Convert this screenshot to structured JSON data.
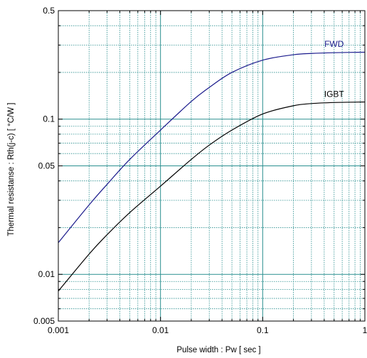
{
  "chart_data": {
    "type": "line",
    "xlabel": "Pulse width  :  Pw  [ sec ]",
    "ylabel": "Thermal resistanse  :  Rth(j-c)  [ °C/W ]",
    "x_scale": "log",
    "y_scale": "log",
    "xlim": [
      0.001,
      1
    ],
    "ylim": [
      0.005,
      0.5
    ],
    "grid": true,
    "x_ticks": [
      {
        "value": 0.001,
        "label": "0.001"
      },
      {
        "value": 0.01,
        "label": "0.01"
      },
      {
        "value": 0.1,
        "label": "0.1"
      },
      {
        "value": 1,
        "label": "1"
      }
    ],
    "y_ticks": [
      {
        "value": 0.005,
        "label": "0.005"
      },
      {
        "value": 0.01,
        "label": "0.01"
      },
      {
        "value": 0.05,
        "label": "0.05"
      },
      {
        "value": 0.1,
        "label": "0.1"
      },
      {
        "value": 0.5,
        "label": "0.5"
      }
    ],
    "series": [
      {
        "name": "FWD",
        "color": "#1a1a8c",
        "x": [
          0.001,
          0.002,
          0.003,
          0.005,
          0.01,
          0.02,
          0.03,
          0.05,
          0.1,
          0.2,
          0.3,
          0.5,
          1
        ],
        "y": [
          0.016,
          0.028,
          0.038,
          0.055,
          0.085,
          0.13,
          0.16,
          0.2,
          0.24,
          0.26,
          0.265,
          0.268,
          0.27
        ]
      },
      {
        "name": "IGBT",
        "color": "#000000",
        "x": [
          0.001,
          0.002,
          0.003,
          0.005,
          0.01,
          0.02,
          0.03,
          0.05,
          0.1,
          0.2,
          0.3,
          0.5,
          1
        ],
        "y": [
          0.0078,
          0.0135,
          0.018,
          0.025,
          0.037,
          0.055,
          0.068,
          0.085,
          0.108,
          0.122,
          0.126,
          0.128,
          0.129
        ]
      }
    ]
  }
}
